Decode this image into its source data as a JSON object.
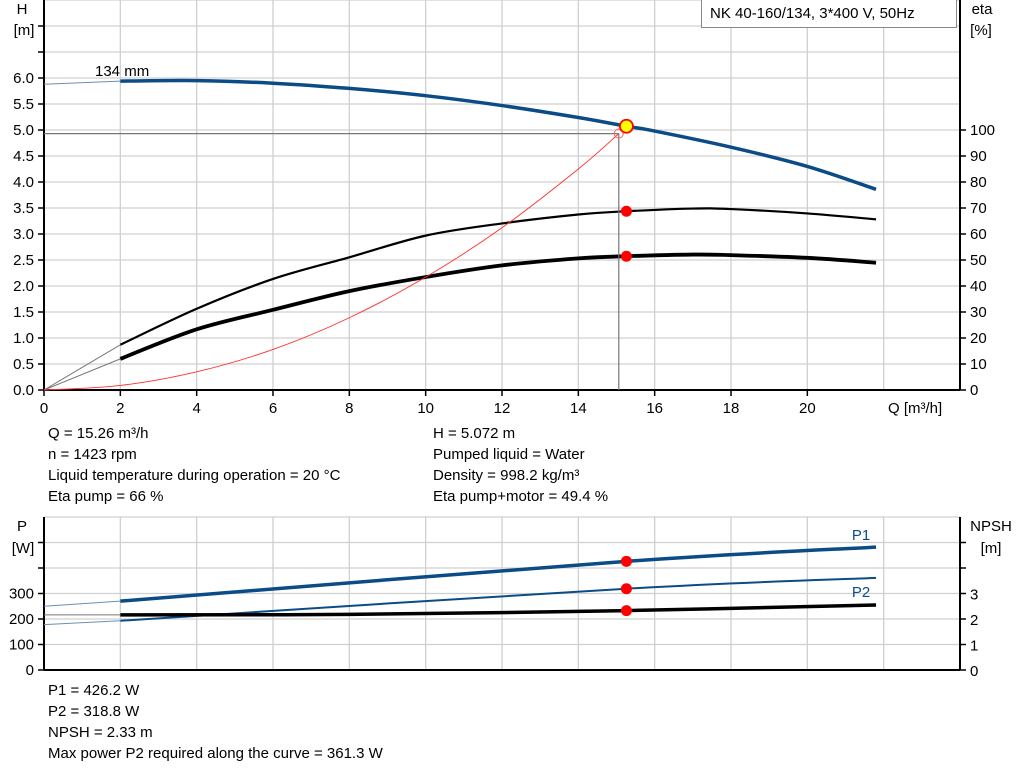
{
  "colors": {
    "head": "#0b4c86",
    "power": "#0b4c86",
    "eta": "#000000",
    "system": "#ff3030",
    "marker": "#ff0000",
    "op_fill": "#ffff00",
    "grid": "#d0d0d0"
  },
  "legend_title": "NK 40-160/134, 3*400 V, 50Hz",
  "chart_data": [
    {
      "type": "line",
      "name_key": "head-efficiency",
      "xlabel": "Q [m³/h]",
      "ylabel_left": [
        "H",
        "[m]"
      ],
      "ylabel_right": [
        "eta",
        "[%]"
      ],
      "xlim": [
        0,
        24
      ],
      "ylim_left": [
        0,
        7.5
      ],
      "ylim_right": [
        0,
        144
      ],
      "grid": true,
      "x_ticks": [
        "0",
        "2",
        "4",
        "6",
        "8",
        "10",
        "12",
        "14",
        "16",
        "18",
        "20"
      ],
      "y_left_ticks": [
        "0.0",
        "0.5",
        "1.0",
        "1.5",
        "2.0",
        "2.5",
        "3.0",
        "3.5",
        "4.0",
        "4.5",
        "5.0",
        "5.5",
        "6.0"
      ],
      "y_right_ticks": [
        "0",
        "10",
        "20",
        "30",
        "40",
        "50",
        "60",
        "70",
        "80",
        "90",
        "100"
      ],
      "curve_label": "134 mm",
      "series": [
        {
          "key": "head",
          "axis": "left",
          "value_at_q0": 5.88,
          "points": [
            [
              2,
              5.94
            ],
            [
              4,
              5.95
            ],
            [
              6,
              5.9
            ],
            [
              8,
              5.8
            ],
            [
              10,
              5.66
            ],
            [
              12,
              5.47
            ],
            [
              14,
              5.24
            ],
            [
              15.26,
              5.072
            ],
            [
              16,
              4.98
            ],
            [
              18,
              4.67
            ],
            [
              20,
              4.3
            ],
            [
              21.8,
              3.86
            ]
          ]
        },
        {
          "key": "eta-pump",
          "axis": "right",
          "value_at_q0": 0,
          "points": [
            [
              2,
              16.7
            ],
            [
              4,
              30
            ],
            [
              6,
              41
            ],
            [
              8,
              49
            ],
            [
              10,
              57
            ],
            [
              12,
              61.5
            ],
            [
              14,
              64.8
            ],
            [
              15.26,
              66
            ],
            [
              17,
              67
            ],
            [
              18,
              66.8
            ],
            [
              20,
              65.2
            ],
            [
              21.8,
              63
            ]
          ]
        },
        {
          "key": "eta-pump-motor",
          "axis": "right",
          "value_at_q0": 0,
          "points": [
            [
              2,
              11.5
            ],
            [
              4,
              22.4
            ],
            [
              6,
              29.6
            ],
            [
              8,
              36.5
            ],
            [
              10,
              41.7
            ],
            [
              12,
              46
            ],
            [
              14,
              48.6
            ],
            [
              15.26,
              49.4
            ],
            [
              17,
              50
            ],
            [
              18,
              49.8
            ],
            [
              20,
              48.8
            ],
            [
              21.8,
              47
            ]
          ]
        },
        {
          "key": "system-curve",
          "axis": "left",
          "points": [
            [
              0,
              0
            ],
            [
              2,
              0.087
            ],
            [
              4,
              0.35
            ],
            [
              6,
              0.78
            ],
            [
              8,
              1.39
            ],
            [
              10,
              2.17
            ],
            [
              12,
              3.12
            ],
            [
              14,
              4.25
            ],
            [
              15.06,
              4.93
            ]
          ]
        }
      ],
      "operating_point": {
        "q": 15.26,
        "h": 5.072,
        "eta_pump": 66,
        "eta_pump_motor": 49.4
      },
      "system_point": {
        "q": 15.06,
        "h": 4.93
      }
    },
    {
      "type": "line",
      "name_key": "power-npsh",
      "ylabel_left": [
        "P",
        "[W]"
      ],
      "ylabel_right": [
        "NPSH",
        "[m]"
      ],
      "xlim": [
        0,
        24
      ],
      "ylim_left": [
        0,
        600
      ],
      "ylim_right": [
        0,
        6
      ],
      "grid": true,
      "y_left_ticks": [
        "0",
        "100",
        "200",
        "300"
      ],
      "y_right_ticks": [
        "0",
        "1",
        "2",
        "3"
      ],
      "series": [
        {
          "key": "P1",
          "label": "P1",
          "axis": "left",
          "value_at_q0": 250,
          "points": [
            [
              2,
              270
            ],
            [
              15.26,
              426.2
            ],
            [
              21.8,
              482
            ]
          ]
        },
        {
          "key": "P2",
          "label": "P2",
          "axis": "left",
          "value_at_q0": 178,
          "points": [
            [
              2,
              193
            ],
            [
              15.26,
              318.8
            ],
            [
              21.8,
              361.3
            ]
          ]
        },
        {
          "key": "NPSH",
          "axis": "right",
          "value_at_q0": 2.16,
          "points": [
            [
              2,
              2.16
            ],
            [
              8,
              2.18
            ],
            [
              15.26,
              2.33
            ],
            [
              21.8,
              2.55
            ]
          ]
        }
      ],
      "operating_point": {
        "q": 15.26,
        "p1": 426.2,
        "p2": 318.8,
        "npsh": 2.33
      }
    }
  ],
  "info_top_left": [
    "Q = 15.26 m³/h",
    "n = 1423 rpm",
    "Liquid temperature during operation = 20 °C",
    "Eta pump = 66 %"
  ],
  "info_top_right": [
    "H = 5.072 m",
    "Pumped liquid = Water",
    "Density = 998.2 kg/m³",
    "Eta pump+motor = 49.4 %"
  ],
  "info_bottom": [
    "P1 = 426.2 W",
    "P2 = 318.8 W",
    "NPSH = 2.33 m",
    "Max power P2 required along the curve = 361.3 W"
  ]
}
